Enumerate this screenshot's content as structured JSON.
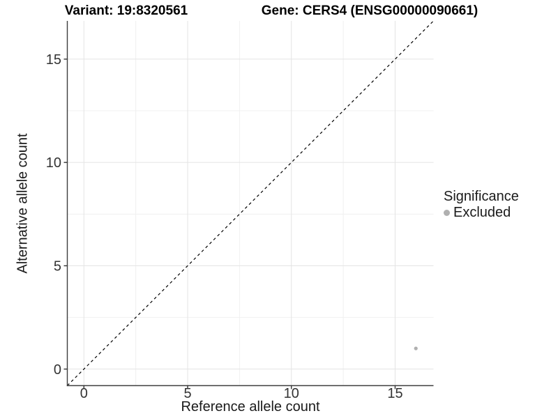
{
  "chart_data": {
    "type": "scatter",
    "titles": {
      "variant": "Variant: 19:8320561",
      "gene": "Gene: CERS4 (ENSG00000090661)"
    },
    "xlabel": "Reference allele count",
    "ylabel": "Alternative allele count",
    "xlim": [
      -0.8,
      16.85
    ],
    "ylim": [
      -0.8,
      16.85
    ],
    "x_major_ticks": [
      0,
      5,
      10,
      15
    ],
    "y_major_ticks": [
      0,
      5,
      10,
      15
    ],
    "x_minor_gridlines": [
      2.5,
      7.5,
      12.5
    ],
    "y_minor_gridlines": [
      2.5,
      7.5,
      12.5
    ],
    "grid": "major+minor",
    "reference_line": {
      "kind": "identity",
      "label": "y = x",
      "stroke": "#000000",
      "dash": "4 4"
    },
    "series": [
      {
        "name": "Excluded",
        "color": "#b0b0b0",
        "points": [
          {
            "x": 16,
            "y": 1
          }
        ]
      }
    ],
    "legend": {
      "title": "Significance",
      "position": "right",
      "items": [
        {
          "label": "Excluded",
          "color": "#b0b0b0",
          "marker": "circle"
        }
      ]
    },
    "style": {
      "axis_line_color": "#3d3d3d",
      "tick_color": "#333333",
      "tick_label_color": "#333333",
      "major_grid_color": "#e4e4e4",
      "minor_grid_color": "#f0f0f0",
      "point_radius_px": 2.6
    }
  }
}
